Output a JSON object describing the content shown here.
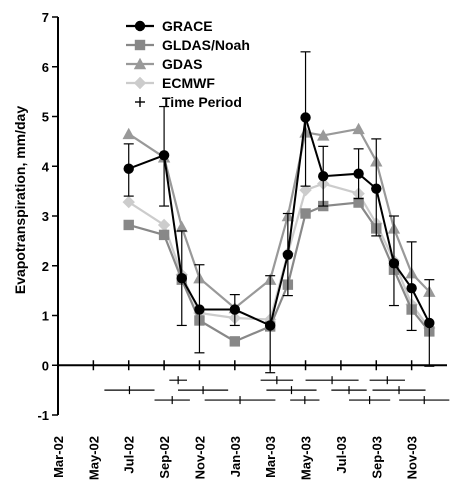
{
  "chart_data": {
    "type": "line",
    "ylabel": "Evapotranspiration, mm/day",
    "ylim": [
      -1,
      7
    ],
    "yticks": [
      -1,
      0,
      1,
      2,
      3,
      4,
      5,
      6,
      7
    ],
    "xlim": [
      "2002-03",
      "2004-01"
    ],
    "xticks": [
      "Mar-02",
      "May-02",
      "Jul-02",
      "Sep-02",
      "Nov-02",
      "Jan-03",
      "Mar-03",
      "May-03",
      "Jul-03",
      "Sep-03",
      "Nov-03"
    ],
    "months": [
      "Jul-02",
      "Sep-02",
      "Oct-02",
      "Nov-02",
      "Jan-03",
      "Mar-03",
      "Apr-03",
      "May-03",
      "Jun-03",
      "Aug-03",
      "Sep-03",
      "Oct-03",
      "Nov-03",
      "Dec-03"
    ],
    "series": [
      {
        "name": "GRACE",
        "marker": "circle",
        "color": "#000000",
        "values": [
          3.95,
          4.22,
          1.75,
          1.12,
          1.12,
          0.8,
          2.22,
          4.98,
          3.8,
          3.85,
          3.55,
          2.05,
          1.55,
          0.85
        ],
        "err_low": [
          3.4,
          3.2,
          0.8,
          0.25,
          0.8,
          -0.15,
          1.4,
          3.6,
          3.2,
          3.35,
          2.6,
          1.2,
          0.7,
          -0.02
        ],
        "err_high": [
          4.45,
          5.2,
          2.7,
          2.02,
          1.42,
          1.8,
          3.05,
          6.3,
          4.4,
          4.35,
          4.55,
          3.0,
          2.48,
          1.72
        ]
      },
      {
        "name": "GLDAS/Noah",
        "marker": "square",
        "color": "#888888",
        "values": [
          2.82,
          2.62,
          1.72,
          0.9,
          0.48,
          0.78,
          1.62,
          3.05,
          3.2,
          3.27,
          2.75,
          1.92,
          1.12,
          0.68
        ]
      },
      {
        "name": "GDAS",
        "marker": "triangle",
        "color": "#999999",
        "values": [
          4.65,
          4.18,
          2.78,
          1.75,
          1.15,
          1.72,
          3.0,
          4.68,
          4.62,
          4.75,
          4.1,
          2.75,
          1.85,
          1.48
        ]
      },
      {
        "name": "ECMWF",
        "marker": "diamond",
        "color": "#cccccc",
        "values": [
          3.28,
          2.82,
          1.82,
          1.05,
          0.95,
          0.92,
          2.25,
          3.52,
          3.65,
          3.45,
          2.85,
          2.1,
          1.22,
          0.75
        ]
      }
    ],
    "time_periods": [
      {
        "start": "2002-05-20",
        "end": "2002-08-15",
        "y": -0.5
      },
      {
        "start": "2002-08-15",
        "end": "2002-10-15",
        "y": -0.7
      },
      {
        "start": "2002-09-10",
        "end": "2002-10-10",
        "y": -0.3
      },
      {
        "start": "2002-09-25",
        "end": "2002-12-20",
        "y": -0.5
      },
      {
        "start": "2002-11-10",
        "end": "2003-03-10",
        "y": -0.7
      },
      {
        "start": "2003-02-15",
        "end": "2003-04-10",
        "y": -0.3
      },
      {
        "start": "2003-02-25",
        "end": "2003-05-20",
        "y": -0.5
      },
      {
        "start": "2003-04-05",
        "end": "2003-05-25",
        "y": -0.7
      },
      {
        "start": "2003-05-01",
        "end": "2003-08-01",
        "y": -0.3
      },
      {
        "start": "2003-06-15",
        "end": "2003-08-15",
        "y": -0.5
      },
      {
        "start": "2003-07-15",
        "end": "2003-09-25",
        "y": -0.7
      },
      {
        "start": "2003-08-20",
        "end": "2003-10-20",
        "y": -0.3
      },
      {
        "start": "2003-08-25",
        "end": "2003-11-25",
        "y": -0.5
      },
      {
        "start": "2003-10-10",
        "end": "2004-01-05",
        "y": -0.7
      }
    ],
    "legend": {
      "placement": "top",
      "entries": [
        "GRACE",
        "GLDAS/Noah",
        "GDAS",
        "ECMWF",
        "Time Period"
      ]
    },
    "grid": false
  }
}
